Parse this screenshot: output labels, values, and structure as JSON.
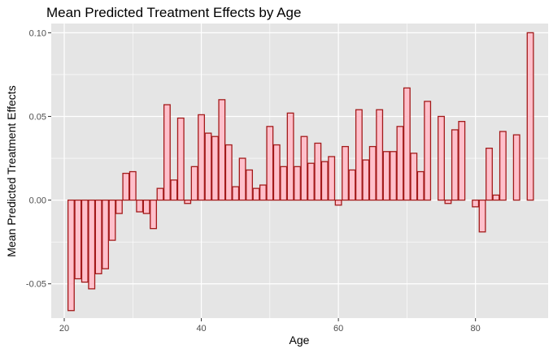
{
  "chart_data": {
    "type": "bar",
    "title": "Mean Predicted Treatment Effects by Age",
    "xlabel": "Age",
    "ylabel": "Mean Predicted Treatment Effects",
    "xlim": [
      18.1,
      90.6
    ],
    "ylim": [
      -0.0705,
      0.1055
    ],
    "x_ticks": [
      20,
      40,
      60,
      80
    ],
    "y_ticks": [
      -0.05,
      0.0,
      0.05,
      0.1
    ],
    "x_tick_labels": [
      "20",
      "40",
      "60",
      "80"
    ],
    "y_tick_labels": [
      "-0.05",
      "0.00",
      "0.05",
      "0.10"
    ],
    "grid": true,
    "legend": "none",
    "colors": {
      "panel_background": "#e5e5e5",
      "grid_line": "#ffffff",
      "bar_fill": "#ffc0cb",
      "bar_stroke": "#a31a1a"
    },
    "x": [
      21,
      22,
      23,
      24,
      25,
      26,
      27,
      28,
      29,
      30,
      31,
      32,
      33,
      34,
      35,
      36,
      37,
      38,
      39,
      40,
      41,
      42,
      43,
      44,
      45,
      46,
      47,
      48,
      49,
      50,
      51,
      52,
      53,
      54,
      55,
      56,
      57,
      58,
      59,
      60,
      61,
      62,
      63,
      64,
      65,
      66,
      67,
      68,
      69,
      70,
      71,
      72,
      73,
      75,
      76,
      77,
      78,
      80,
      81,
      82,
      83,
      84,
      86,
      88
    ],
    "values": [
      -0.066,
      -0.047,
      -0.049,
      -0.053,
      -0.044,
      -0.041,
      -0.024,
      -0.008,
      0.016,
      0.017,
      -0.007,
      -0.008,
      -0.017,
      0.007,
      0.057,
      0.012,
      0.049,
      -0.002,
      0.02,
      0.051,
      0.04,
      0.038,
      0.06,
      0.033,
      0.008,
      0.025,
      0.018,
      0.007,
      0.009,
      0.044,
      0.033,
      0.02,
      0.052,
      0.02,
      0.038,
      0.022,
      0.034,
      0.023,
      0.026,
      -0.003,
      0.032,
      0.018,
      0.054,
      0.024,
      0.032,
      0.054,
      0.029,
      0.029,
      0.044,
      0.067,
      0.028,
      0.017,
      0.059,
      0.05,
      -0.002,
      0.042,
      0.047,
      -0.004,
      -0.019,
      0.031,
      0.003,
      0.041,
      0.039,
      0.1
    ]
  }
}
